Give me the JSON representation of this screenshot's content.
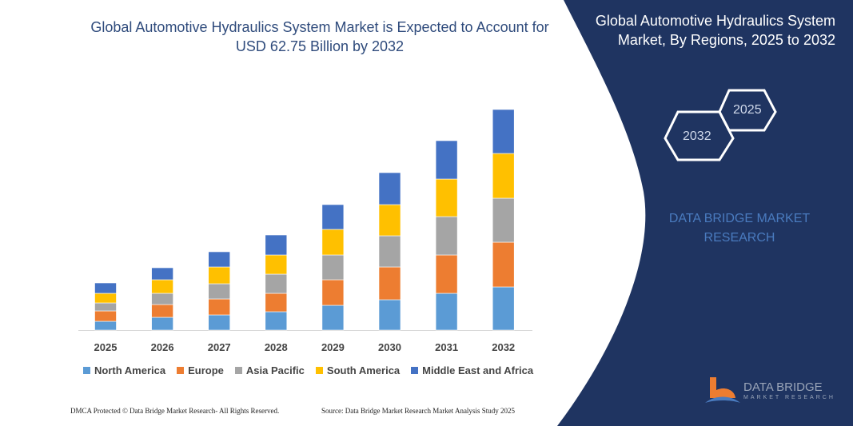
{
  "header": {
    "title": "Global Automotive Hydraulics System Market is Expected to Account for USD 62.75 Billion by 2032",
    "side_title": "Global Automotive Hydraulics System Market, By Regions, 2025 to 2032",
    "hex_years": [
      "2025",
      "2032"
    ],
    "brand_text": "DATA BRIDGE MARKET RESEARCH"
  },
  "footer": {
    "left": "DMCA Protected © Data Bridge Market Research- All Rights Reserved.",
    "right": "Source: Data Bridge Market Research  Market Analysis Study 2025"
  },
  "logo": {
    "name": "DATA BRIDGE",
    "sub": "MARKET RESEARCH"
  },
  "colors": {
    "panel": "#1f3461",
    "title": "#2f4b7c"
  },
  "chart_data": {
    "type": "bar",
    "stacked": true,
    "title": "",
    "xlabel": "",
    "ylabel": "",
    "grid": false,
    "legend_position": "bottom",
    "categories": [
      "2025",
      "2026",
      "2027",
      "2028",
      "2029",
      "2030",
      "2031",
      "2032"
    ],
    "series": [
      {
        "name": "North America",
        "color": "#5b9bd5",
        "values": [
          11,
          16,
          19,
          23,
          31,
          38,
          46,
          54
        ]
      },
      {
        "name": "Europe",
        "color": "#ed7d31",
        "values": [
          13,
          16,
          20,
          23,
          32,
          41,
          48,
          56
        ]
      },
      {
        "name": "Asia Pacific",
        "color": "#a5a5a5",
        "values": [
          10,
          14,
          19,
          24,
          31,
          39,
          48,
          55
        ]
      },
      {
        "name": "South America",
        "color": "#ffc000",
        "values": [
          12,
          17,
          21,
          24,
          32,
          39,
          47,
          56
        ]
      },
      {
        "name": "Middle East and Africa",
        "color": "#4472c4",
        "values": [
          13,
          15,
          19,
          25,
          31,
          40,
          48,
          55
        ]
      }
    ]
  }
}
